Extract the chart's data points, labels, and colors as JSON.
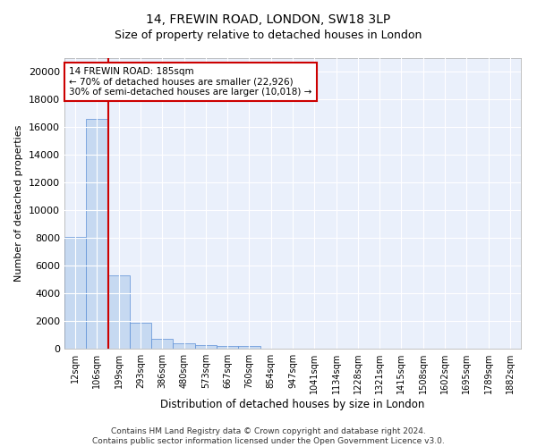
{
  "title": "14, FREWIN ROAD, LONDON, SW18 3LP",
  "subtitle": "Size of property relative to detached houses in London",
  "xlabel": "Distribution of detached houses by size in London",
  "ylabel": "Number of detached properties",
  "bar_color": "#c6d9f1",
  "bar_edge_color": "#5b8ed6",
  "background_color": "#eaf0fb",
  "grid_color": "#ffffff",
  "annotation_text": "14 FREWIN ROAD: 185sqm\n← 70% of detached houses are smaller (22,926)\n30% of semi-detached houses are larger (10,018) →",
  "categories": [
    "12sqm",
    "106sqm",
    "199sqm",
    "293sqm",
    "386sqm",
    "480sqm",
    "573sqm",
    "667sqm",
    "760sqm",
    "854sqm",
    "947sqm",
    "1041sqm",
    "1134sqm",
    "1228sqm",
    "1321sqm",
    "1415sqm",
    "1508sqm",
    "1602sqm",
    "1695sqm",
    "1789sqm",
    "1882sqm"
  ],
  "bar_heights": [
    8100,
    16600,
    5300,
    1850,
    700,
    380,
    280,
    220,
    210,
    0,
    0,
    0,
    0,
    0,
    0,
    0,
    0,
    0,
    0,
    0,
    0
  ],
  "ylim": [
    0,
    21000
  ],
  "yticks": [
    0,
    2000,
    4000,
    6000,
    8000,
    10000,
    12000,
    14000,
    16000,
    18000,
    20000
  ],
  "footnote": "Contains HM Land Registry data © Crown copyright and database right 2024.\nContains public sector information licensed under the Open Government Licence v3.0.",
  "red_line_color": "#cc0000",
  "annotation_box_color": "#ffffff",
  "annotation_box_edge_color": "#cc0000",
  "title_fontsize": 10,
  "subtitle_fontsize": 9
}
